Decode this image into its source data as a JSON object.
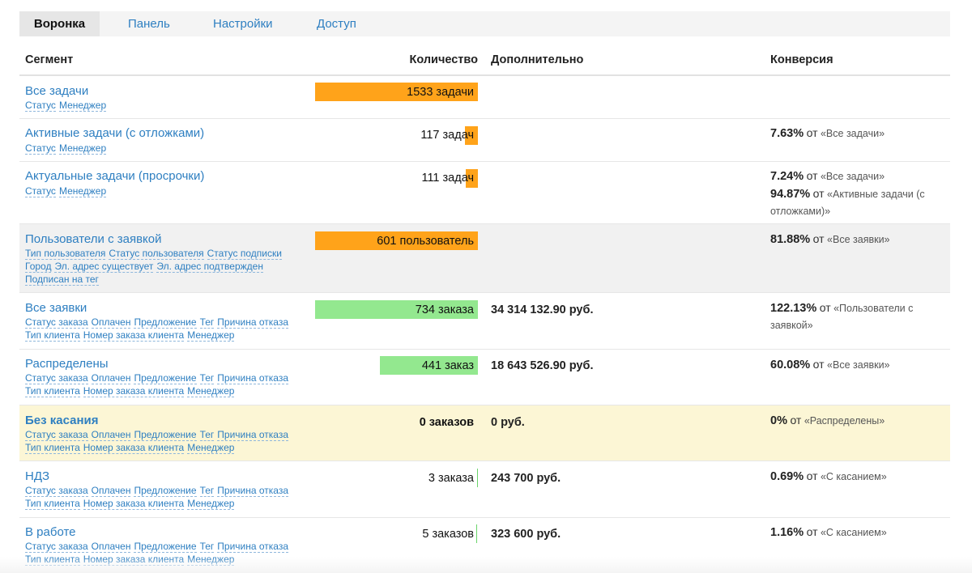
{
  "tabs": [
    {
      "label": "Воронка"
    },
    {
      "label": "Панель"
    },
    {
      "label": "Настройки"
    },
    {
      "label": "Доступ"
    }
  ],
  "columns": {
    "segment": "Сегмент",
    "quantity": "Количество",
    "extra": "Дополнительно",
    "conversion": "Конверсия"
  },
  "colors": {
    "accent_link": "#2e7fc1",
    "bar_orange": "#ffa31a",
    "bar_green": "#93e88f",
    "row_highlight_grey": "#f1f1f1",
    "row_highlight_yellow": "#fcf6d5"
  },
  "rows": [
    {
      "title": "Все задачи",
      "sub1": [
        "Статус",
        "Менеджер"
      ],
      "count": "1533 задачи",
      "bar_color": "orange",
      "bar_fraction": 1.0
    },
    {
      "title": "Активные задачи (с отложками)",
      "sub1": [
        "Статус",
        "Менеджер"
      ],
      "count": "117 задач",
      "bar_color": "orange",
      "bar_fraction": 0.076,
      "conv": [
        {
          "pct": "7.63%",
          "of": "от",
          "ref": "«Все задачи»"
        }
      ]
    },
    {
      "title": "Актуальные задачи (просрочки)",
      "sub1": [
        "Статус",
        "Менеджер"
      ],
      "count": "111 задач",
      "bar_color": "orange",
      "bar_fraction": 0.072,
      "conv": [
        {
          "pct": "7.24%",
          "of": "от",
          "ref": "«Все задачи»"
        },
        {
          "pct": "94.87%",
          "of": "от",
          "ref": "«Активные задачи (с отложками)»"
        }
      ]
    },
    {
      "title": "Пользователи с заявкой",
      "sub1": [
        "Тип пользователя",
        "Статус пользователя",
        "Статус подписки"
      ],
      "sub2": [
        "Город",
        "Эл. адрес существует",
        "Эл. адрес подтвержден"
      ],
      "sub3": [
        "Подписан на тег"
      ],
      "count": "601 пользователь",
      "bar_color": "orange",
      "bar_fraction": 1.0,
      "conv": [
        {
          "pct": "81.88%",
          "of": "от",
          "ref": "«Все заявки»"
        }
      ]
    },
    {
      "title": "Все заявки",
      "sub1": [
        "Статус заказа",
        "Оплачен",
        "Предложение",
        "Тег",
        "Причина отказа"
      ],
      "sub2": [
        "Тип клиента",
        "Номер заказа клиента",
        "Менеджер"
      ],
      "count": "734 заказа",
      "bar_color": "green",
      "bar_fraction": 1.0,
      "extra": "34 314 132.90 руб.",
      "conv": [
        {
          "pct": "122.13%",
          "of": "от",
          "ref": "«Пользователи с заявкой»"
        }
      ]
    },
    {
      "title": "Распределены",
      "sub1": [
        "Статус заказа",
        "Оплачен",
        "Предложение",
        "Тег",
        "Причина отказа"
      ],
      "sub2": [
        "Тип клиента",
        "Номер заказа клиента",
        "Менеджер"
      ],
      "count": "441 заказ",
      "bar_color": "green",
      "bar_fraction": 0.6,
      "extra": "18 643 526.90 руб.",
      "conv": [
        {
          "pct": "60.08%",
          "of": "от",
          "ref": "«Все заявки»"
        }
      ]
    },
    {
      "title": "Без касания",
      "sub1": [
        "Статус заказа",
        "Оплачен",
        "Предложение",
        "Тег",
        "Причина отказа"
      ],
      "sub2": [
        "Тип клиента",
        "Номер заказа клиента",
        "Менеджер"
      ],
      "count": "0 заказов",
      "extra": "0 руб.",
      "conv": [
        {
          "pct": "0%",
          "of": "от",
          "ref": "«Распределены»"
        }
      ]
    },
    {
      "title": "НДЗ",
      "sub1": [
        "Статус заказа",
        "Оплачен",
        "Предложение",
        "Тег",
        "Причина отказа"
      ],
      "sub2": [
        "Тип клиента",
        "Номер заказа клиента",
        "Менеджер"
      ],
      "count": "3 заказа",
      "bar_color": "green",
      "bar_fraction": 0.004,
      "extra": "243 700 руб.",
      "conv": [
        {
          "pct": "0.69%",
          "of": "от",
          "ref": "«С касанием»"
        }
      ]
    },
    {
      "title": "В работе",
      "sub1": [
        "Статус заказа",
        "Оплачен",
        "Предложение",
        "Тег",
        "Причина отказа"
      ],
      "sub2": [
        "Тип клиента",
        "Номер заказа клиента",
        "Менеджер"
      ],
      "count": "5 заказов",
      "bar_color": "green",
      "bar_fraction": 0.007,
      "extra": "323 600 руб.",
      "conv": [
        {
          "pct": "1.16%",
          "of": "от",
          "ref": "«С касанием»"
        }
      ]
    }
  ]
}
